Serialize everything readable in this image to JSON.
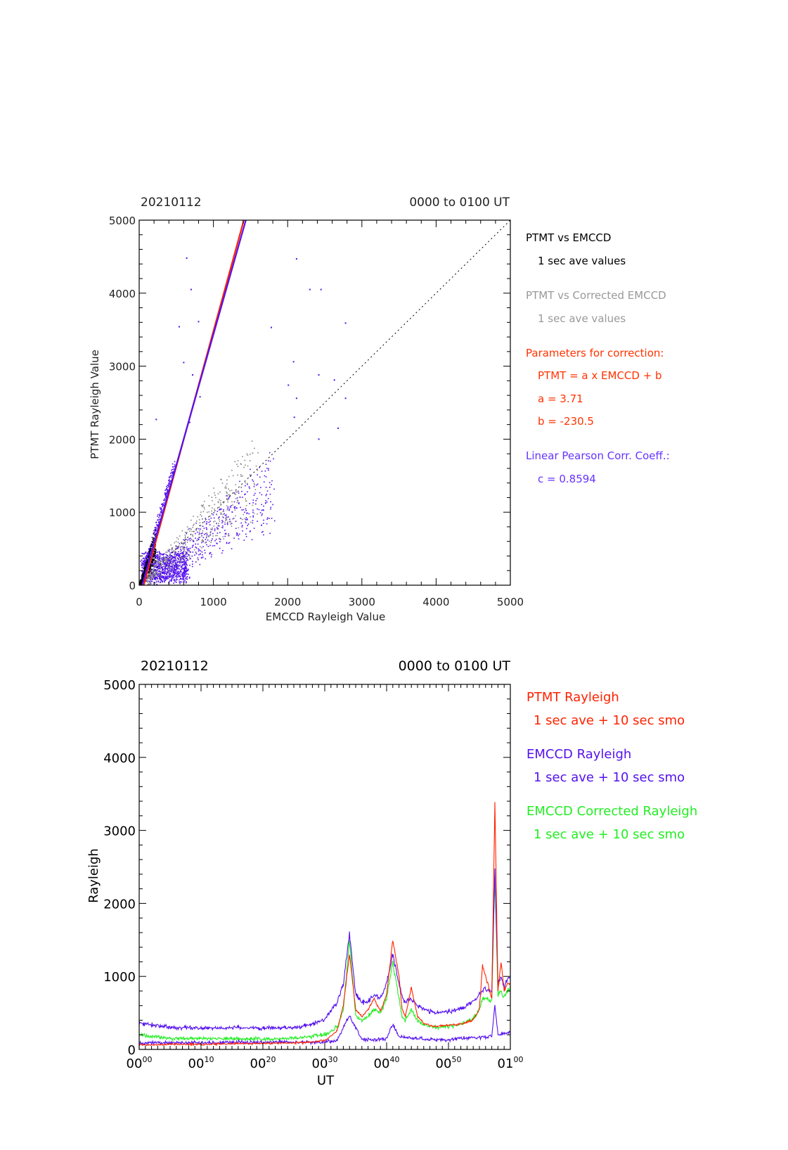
{
  "chart_data": [
    {
      "type": "scatter",
      "title_left": "20210112",
      "title_right": "0000 to 0100 UT",
      "xlabel": "EMCCD Rayleigh Value",
      "ylabel": "PTMT Rayleigh Value",
      "xlim": [
        0,
        5000
      ],
      "ylim": [
        0,
        5000
      ],
      "xticks": [
        "0",
        "1000",
        "2000",
        "3000",
        "4000",
        "5000"
      ],
      "yticks": [
        "0",
        "1000",
        "2000",
        "3000",
        "4000",
        "5000"
      ],
      "grid": false,
      "series": [
        {
          "name": "PTMT vs EMCCD",
          "color": "#000000",
          "kind": "points"
        },
        {
          "name": "PTMT vs Corrected EMCCD",
          "color": "#888888",
          "kind": "points"
        }
      ],
      "fit_lines": [
        {
          "color": "#ff2200",
          "slope": 3.71,
          "intercept": -230.5
        },
        {
          "color": "#5511ee",
          "slope": 3.58,
          "intercept": -145
        }
      ],
      "identity_line": {
        "style": "dotted",
        "color": "#000000"
      },
      "sample_points_blue": [
        [
          640,
          4480
        ],
        [
          700,
          4050
        ],
        [
          800,
          3610
        ],
        [
          540,
          3540
        ],
        [
          1780,
          3530
        ],
        [
          600,
          3050
        ],
        [
          720,
          2880
        ],
        [
          820,
          2580
        ],
        [
          230,
          2270
        ],
        [
          680,
          2230
        ],
        [
          2080,
          3060
        ],
        [
          2010,
          2740
        ],
        [
          2120,
          2560
        ],
        [
          2090,
          2300
        ],
        [
          2420,
          2880
        ],
        [
          2630,
          2810
        ],
        [
          2780,
          2560
        ],
        [
          2680,
          2150
        ],
        [
          2420,
          2000
        ],
        [
          2780,
          3590
        ],
        [
          2120,
          4470
        ],
        [
          2450,
          4050
        ],
        [
          2300,
          4050
        ]
      ],
      "legend": {
        "placement": "right",
        "entries": [
          {
            "text": "PTMT vs EMCCD",
            "color": "#000000"
          },
          {
            "text": "1 sec ave values",
            "color": "#000000"
          },
          {
            "text": "PTMT vs Corrected EMCCD",
            "color": "#999999"
          },
          {
            "text": "1 sec ave values",
            "color": "#999999"
          },
          {
            "text": "Parameters for correction:",
            "color": "#ff3300"
          },
          {
            "text": "PTMT = a x EMCCD + b",
            "color": "#ff3300"
          },
          {
            "text": "a = 3.71",
            "color": "#ff3300"
          },
          {
            "text": "b = -230.5",
            "color": "#ff3300"
          },
          {
            "text": "Linear Pearson Corr. Coeff.:",
            "color": "#6633ff"
          },
          {
            "text": "c = 0.8594",
            "color": "#6633ff"
          }
        ]
      }
    },
    {
      "type": "line",
      "title_left": "20210112",
      "title_right": "0000 to 0100 UT",
      "xlabel": "UT",
      "ylabel": "Rayleigh",
      "xlim_minutes": [
        0,
        60
      ],
      "ylim": [
        0,
        5000
      ],
      "yticks": [
        "0",
        "1000",
        "2000",
        "3000",
        "4000",
        "5000"
      ],
      "xticks": [
        {
          "main": "00",
          "sup": "00"
        },
        {
          "main": "00",
          "sup": "10"
        },
        {
          "main": "00",
          "sup": "20"
        },
        {
          "main": "00",
          "sup": "30"
        },
        {
          "main": "00",
          "sup": "40"
        },
        {
          "main": "00",
          "sup": "50"
        },
        {
          "main": "01",
          "sup": "00"
        }
      ],
      "grid": false,
      "series": [
        {
          "name": "PTMT Rayleigh",
          "color": "#ff2200",
          "x": [
            0,
            5,
            10,
            15,
            20,
            25,
            28,
            30,
            32,
            33,
            34,
            35,
            36,
            37,
            38,
            39,
            40,
            41,
            42,
            42.5,
            43,
            44,
            45,
            46,
            47,
            48,
            50,
            52,
            54,
            55,
            55.5,
            56,
            57,
            57.5,
            58,
            58.5,
            59,
            59.5,
            60
          ],
          "y": [
            60,
            70,
            70,
            80,
            80,
            90,
            100,
            120,
            250,
            600,
            1300,
            550,
            450,
            550,
            700,
            520,
            750,
            1500,
            1000,
            550,
            450,
            850,
            450,
            360,
            320,
            320,
            330,
            350,
            400,
            550,
            1150,
            1000,
            700,
            3400,
            800,
            1200,
            800,
            900,
            900
          ]
        },
        {
          "name": "EMCCD Rayleigh",
          "color": "#5511ee",
          "x": [
            0,
            5,
            10,
            15,
            20,
            25,
            28,
            30,
            32,
            33,
            34,
            35,
            36,
            37,
            38,
            39,
            40,
            41,
            42,
            42.5,
            43,
            44,
            45,
            46,
            47,
            48,
            50,
            52,
            54,
            55,
            55.5,
            56,
            57,
            57.5,
            58,
            58.5,
            59,
            59.5,
            60
          ],
          "y": [
            360,
            300,
            290,
            300,
            290,
            300,
            340,
            420,
            650,
            900,
            1580,
            750,
            650,
            650,
            750,
            700,
            900,
            1300,
            900,
            720,
            650,
            700,
            600,
            560,
            520,
            500,
            520,
            560,
            650,
            750,
            800,
            820,
            800,
            2450,
            900,
            1000,
            850,
            950,
            1000
          ]
        },
        {
          "name": "EMCCD Corrected Rayleigh",
          "color": "#22ee22",
          "x": [
            0,
            5,
            10,
            15,
            20,
            25,
            28,
            30,
            32,
            33,
            34,
            35,
            36,
            37,
            38,
            39,
            40,
            41,
            42,
            42.5,
            43,
            44,
            45,
            46,
            47,
            48,
            50,
            52,
            54,
            55,
            55.5,
            56,
            57,
            57.5,
            58,
            58.5,
            59,
            59.5,
            60
          ],
          "y": [
            200,
            150,
            150,
            150,
            140,
            150,
            180,
            200,
            300,
            550,
            1500,
            450,
            400,
            450,
            550,
            500,
            700,
            1200,
            700,
            450,
            400,
            550,
            400,
            340,
            320,
            300,
            320,
            350,
            420,
            550,
            700,
            700,
            650,
            2400,
            750,
            800,
            700,
            800,
            850
          ]
        },
        {
          "name": "",
          "color": "#5511ee",
          "x": [
            0,
            10,
            20,
            30,
            32,
            34,
            36,
            38,
            40,
            41,
            42,
            44,
            46,
            48,
            50,
            52,
            54,
            56,
            57,
            57.5,
            58,
            59,
            60
          ],
          "y": [
            90,
            90,
            100,
            100,
            120,
            460,
            140,
            130,
            150,
            340,
            170,
            160,
            140,
            130,
            130,
            150,
            160,
            170,
            180,
            600,
            200,
            220,
            240
          ]
        }
      ],
      "legend": {
        "placement": "right",
        "entries": [
          {
            "text": "PTMT Rayleigh",
            "color": "#ff2200"
          },
          {
            "text": "1 sec ave + 10 sec smo",
            "color": "#ff2200"
          },
          {
            "text": "EMCCD Rayleigh",
            "color": "#5511ee"
          },
          {
            "text": "1 sec ave + 10 sec smo",
            "color": "#5511ee"
          },
          {
            "text": "EMCCD Corrected Rayleigh",
            "color": "#22ee22"
          },
          {
            "text": "1 sec ave + 10 sec smo",
            "color": "#22ee22"
          }
        ]
      }
    }
  ]
}
